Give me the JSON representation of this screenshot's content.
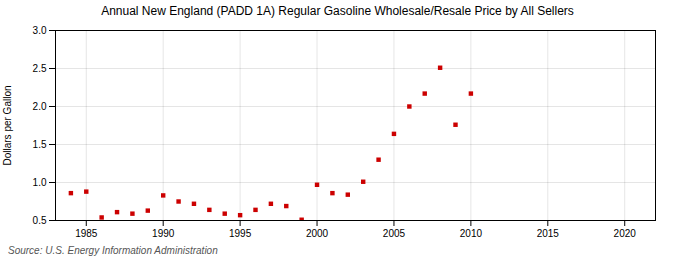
{
  "chart_data": {
    "type": "scatter",
    "title": "Annual New England (PADD 1A) Regular Gasoline Wholesale/Resale Price by All Sellers",
    "ylabel": "Dollars per Gallon",
    "source": "Source: U.S. Energy Information Administration",
    "color": "#cc0000",
    "marker": "square",
    "grid": true,
    "xlim": [
      1983,
      2022
    ],
    "ylim": [
      0.5,
      3.0
    ],
    "xticks": [
      1985,
      1990,
      1995,
      2000,
      2005,
      2010,
      2015,
      2020
    ],
    "yticks": [
      0.5,
      {
        "value": 1.0,
        "label": "1.0"
      },
      1.5,
      {
        "value": 2.0,
        "label": "2.0"
      },
      2.5,
      {
        "value": 3.0,
        "label": "3.0"
      }
    ],
    "x": [
      1984,
      1985,
      1986,
      1987,
      1988,
      1989,
      1990,
      1991,
      1992,
      1993,
      1994,
      1995,
      1996,
      1997,
      1998,
      1999,
      2000,
      2001,
      2002,
      2003,
      2004,
      2005,
      2006,
      2007,
      2008,
      2009,
      2010
    ],
    "values": [
      0.86,
      0.88,
      0.54,
      0.61,
      0.59,
      0.63,
      0.83,
      0.75,
      0.72,
      0.64,
      0.59,
      0.57,
      0.64,
      0.72,
      0.69,
      0.51,
      0.97,
      0.86,
      0.84,
      1.01,
      1.3,
      1.64,
      2.0,
      2.17,
      2.51,
      1.76,
      2.17
    ]
  }
}
